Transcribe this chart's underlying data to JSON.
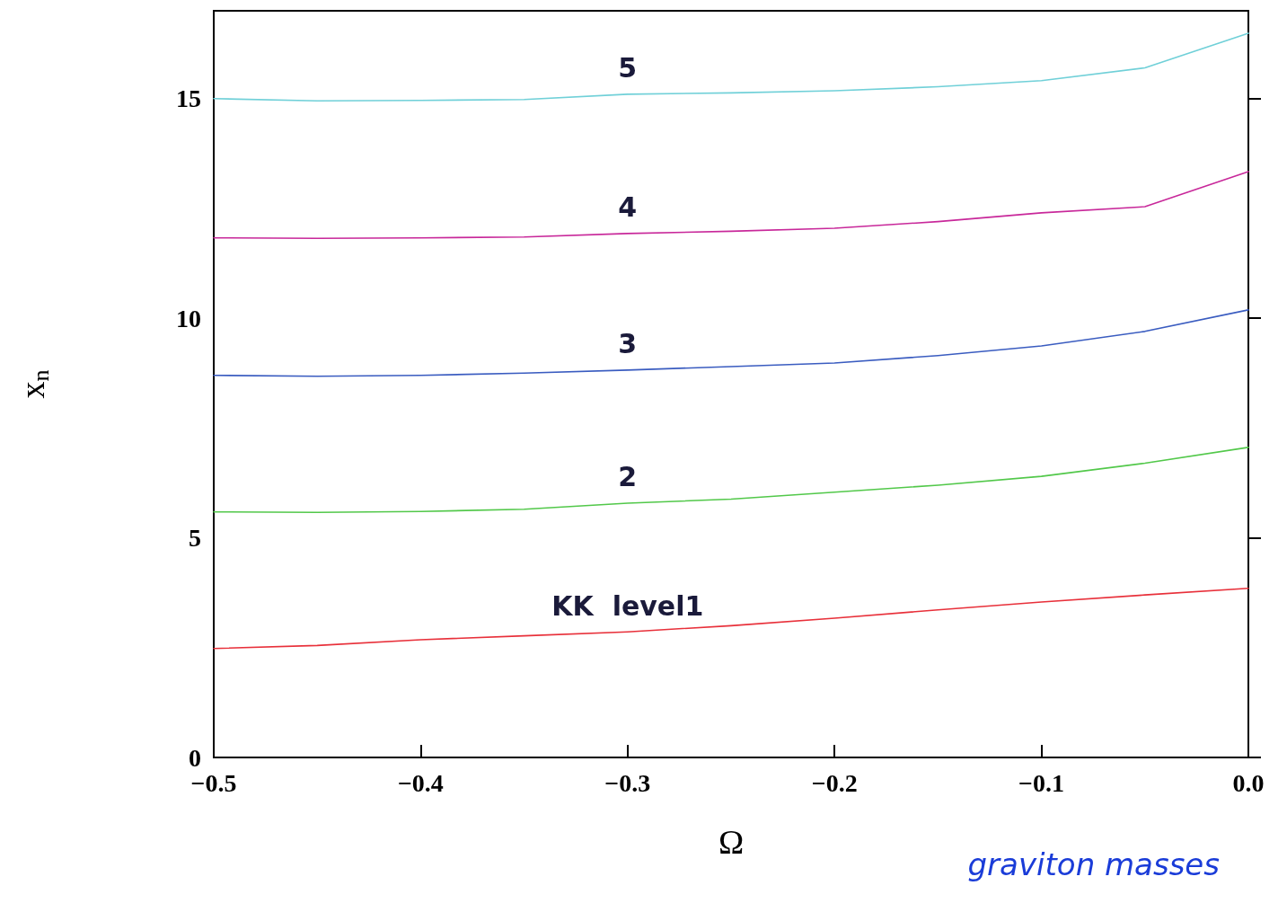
{
  "chart_data": {
    "type": "line",
    "xlabel": "Ω",
    "ylabel": "x$_{n}$",
    "x": [
      -0.5,
      -0.45,
      -0.4,
      -0.35,
      -0.3,
      -0.25,
      -0.2,
      -0.15,
      -0.1,
      -0.05,
      0.0
    ],
    "series": [
      {
        "name": "KK  level1",
        "color": "#e8303a",
        "values": [
          2.48,
          2.55,
          2.68,
          2.77,
          2.86,
          3.0,
          3.17,
          3.36,
          3.54,
          3.7,
          3.85
        ]
      },
      {
        "name": "2",
        "color": "#52c84a",
        "values": [
          5.59,
          5.58,
          5.6,
          5.65,
          5.79,
          5.88,
          6.04,
          6.2,
          6.4,
          6.7,
          7.06
        ]
      },
      {
        "name": "3",
        "color": "#3a5cc0",
        "values": [
          8.7,
          8.68,
          8.7,
          8.75,
          8.82,
          8.9,
          8.98,
          9.15,
          9.37,
          9.7,
          10.19
        ]
      },
      {
        "name": "4",
        "color": "#c8289a",
        "values": [
          11.83,
          11.82,
          11.83,
          11.85,
          11.93,
          11.98,
          12.05,
          12.2,
          12.4,
          12.54,
          13.34
        ]
      },
      {
        "name": "5",
        "color": "#70d0d8",
        "values": [
          15.0,
          14.95,
          14.96,
          14.98,
          15.1,
          15.13,
          15.18,
          15.27,
          15.41,
          15.7,
          16.49
        ]
      }
    ],
    "xlim": [
      -0.5,
      0.0
    ],
    "xticks": [
      {
        "value": -0.5,
        "label": "−0.5"
      },
      {
        "value": -0.4,
        "label": "−0.4"
      },
      {
        "value": -0.3,
        "label": "−0.3"
      },
      {
        "value": -0.2,
        "label": "−0.2"
      },
      {
        "value": -0.1,
        "label": "−0.1"
      },
      {
        "value": 0.0,
        "label": "0.0"
      }
    ],
    "ylim": [
      0,
      17
    ],
    "yticks": [
      0,
      5,
      10,
      15
    ],
    "annotations": [
      "graviton masses"
    ],
    "marker": "none",
    "line_style": "solid",
    "grid": false
  }
}
